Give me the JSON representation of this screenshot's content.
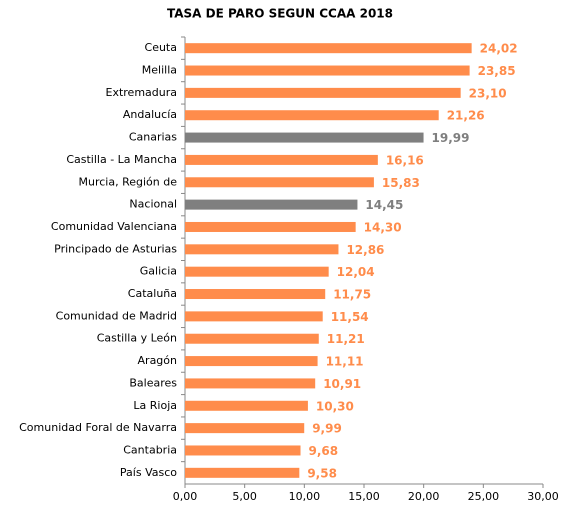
{
  "chart_data": {
    "type": "bar",
    "orientation": "horizontal",
    "title": "TASA DE PARO SEGUN CCAA 2018",
    "categories": [
      "Ceuta",
      "Melilla",
      "Extremadura",
      "Andalucía",
      "Canarias",
      "Castilla - La Mancha",
      "Murcia, Región de",
      "Nacional",
      "Comunidad Valenciana",
      "Principado de Asturias",
      "Galicia",
      "Cataluña",
      "Comunidad de Madrid",
      "Castilla y León",
      "Aragón",
      "Baleares",
      "La Rioja",
      "Comunidad Foral de Navarra",
      "Cantabria",
      "País Vasco"
    ],
    "values": [
      24.02,
      23.85,
      23.1,
      21.26,
      19.99,
      16.16,
      15.83,
      14.45,
      14.3,
      12.86,
      12.04,
      11.75,
      11.54,
      11.21,
      11.11,
      10.91,
      10.3,
      9.99,
      9.68,
      9.58
    ],
    "value_labels": [
      "24,02",
      "23,85",
      "23,10",
      "21,26",
      "19,99",
      "16,16",
      "15,83",
      "14,45",
      "14,30",
      "12,86",
      "12,04",
      "11,75",
      "11,54",
      "11,21",
      "11,11",
      "10,91",
      "10,30",
      "9,99",
      "9,68",
      "9,58"
    ],
    "colors": [
      "#ff8c4b",
      "#ff8c4b",
      "#ff8c4b",
      "#ff8c4b",
      "#7f7f7f",
      "#ff8c4b",
      "#ff8c4b",
      "#7f7f7f",
      "#ff8c4b",
      "#ff8c4b",
      "#ff8c4b",
      "#ff8c4b",
      "#ff8c4b",
      "#ff8c4b",
      "#ff8c4b",
      "#ff8c4b",
      "#ff8c4b",
      "#ff8c4b",
      "#ff8c4b",
      "#ff8c4b"
    ],
    "xlim": [
      0,
      30
    ],
    "xticks": [
      {
        "value": 0,
        "label": "0,00"
      },
      {
        "value": 5,
        "label": "5,00"
      },
      {
        "value": 10,
        "label": "10,00"
      },
      {
        "value": 15,
        "label": "15,00"
      },
      {
        "value": 20,
        "label": "20,00"
      },
      {
        "value": 25,
        "label": "25,00"
      },
      {
        "value": 30,
        "label": "30,00"
      }
    ],
    "grid": false
  }
}
